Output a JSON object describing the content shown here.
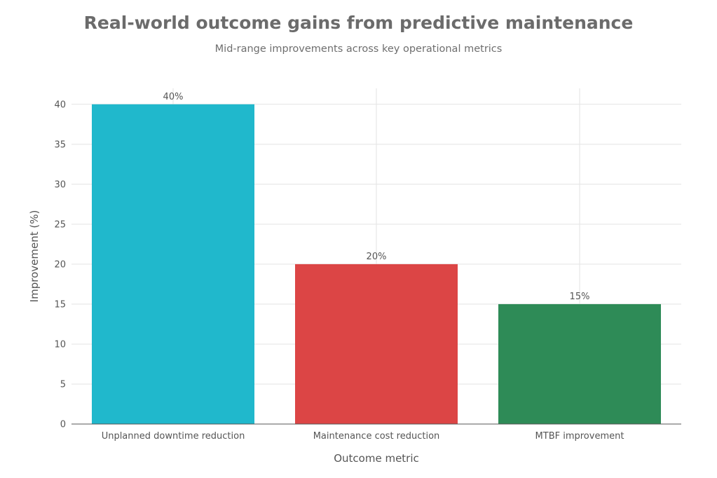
{
  "chart_data": {
    "type": "bar",
    "title": "Real-world outcome gains from predictive maintenance",
    "subtitle": "Mid-range improvements across key operational metrics",
    "xlabel": "Outcome metric",
    "ylabel": "Improvement (%)",
    "categories": [
      "Unplanned downtime reduction",
      "Maintenance cost reduction",
      "MTBF improvement"
    ],
    "values": [
      40,
      20,
      15
    ],
    "data_labels": [
      "40%",
      "20%",
      "15%"
    ],
    "colors": [
      "#20b8cc",
      "#dc4545",
      "#2e8b57"
    ],
    "ylim": [
      0,
      42
    ],
    "yticks": [
      0,
      5,
      10,
      15,
      20,
      25,
      30,
      35,
      40
    ],
    "grid": true,
    "legend": "none"
  }
}
